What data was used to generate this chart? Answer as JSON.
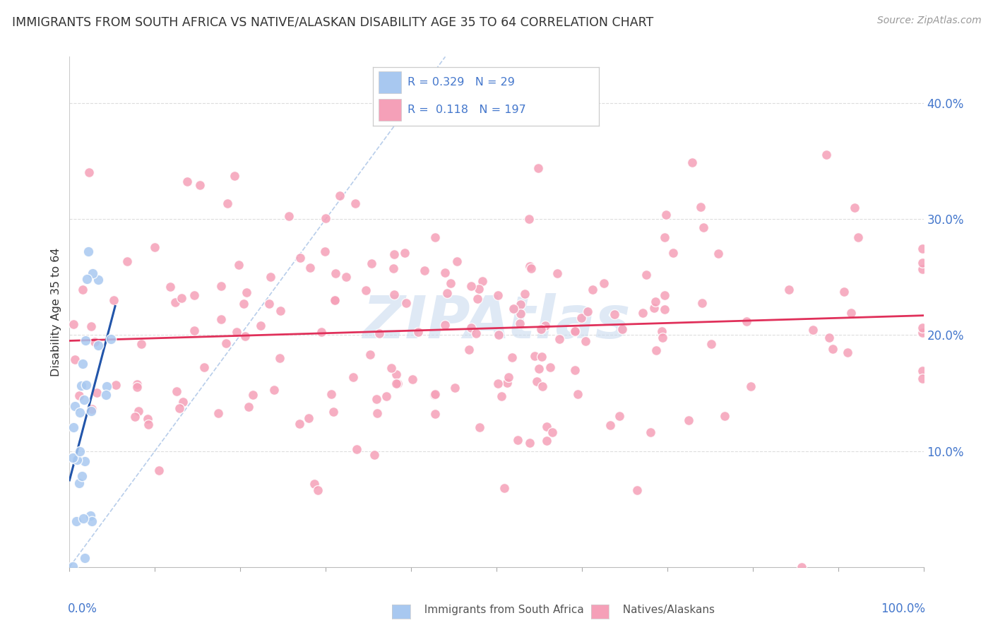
{
  "title": "IMMIGRANTS FROM SOUTH AFRICA VS NATIVE/ALASKAN DISABILITY AGE 35 TO 64 CORRELATION CHART",
  "source": "Source: ZipAtlas.com",
  "ylabel": "Disability Age 35 to 64",
  "blue_R": 0.329,
  "blue_N": 29,
  "pink_R": 0.118,
  "pink_N": 197,
  "blue_color": "#a8c8f0",
  "pink_color": "#f5a0b8",
  "blue_trend_color": "#2255aa",
  "pink_trend_color": "#e0305a",
  "diag_color": "#b0c8e8",
  "legend_label_blue": "Immigrants from South Africa",
  "legend_label_pink": "Natives/Alaskans",
  "watermark": "ZIPAtlas",
  "watermark_color": "#c5d8ee",
  "xlim": [
    0.0,
    1.0
  ],
  "ylim": [
    0.0,
    0.44
  ],
  "yticks": [
    0.1,
    0.2,
    0.3,
    0.4
  ],
  "ytick_labels": [
    "10.0%",
    "20.0%",
    "30.0%",
    "40.0%"
  ],
  "tick_label_color": "#4477cc",
  "title_color": "#333333",
  "source_color": "#999999"
}
